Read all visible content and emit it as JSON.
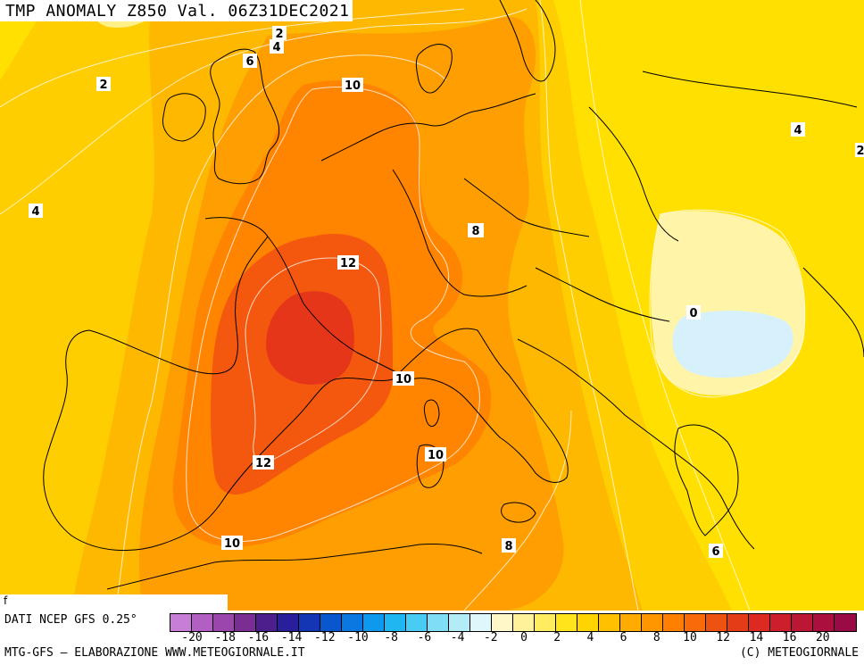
{
  "title": "TMP ANOMALY Z850 Val. 06Z31DEC2021",
  "footer": {
    "source": "DATI NCEP GFS 0.25°",
    "credit": "MTG-GFS — ELABORAZIONE WWW.METEOGIORNALE.IT",
    "copyright": "(C) METEOGIORNALE",
    "corner_mark": "f"
  },
  "scale": {
    "ticks": [
      "-20",
      "-18",
      "-16",
      "-14",
      "-12",
      "-10",
      "-8",
      "-6",
      "-4",
      "-2",
      "0",
      "2",
      "4",
      "6",
      "8",
      "10",
      "12",
      "14",
      "16",
      "20"
    ],
    "colors": [
      "#c77fd6",
      "#b25fc4",
      "#9a46ad",
      "#7a2e94",
      "#4b1f8c",
      "#2a1f9a",
      "#1436b4",
      "#0a56cc",
      "#0a78e0",
      "#0e99ee",
      "#1fb6f2",
      "#49cbf3",
      "#7fddf5",
      "#b3ecf7",
      "#dff7fb",
      "#fff7c8",
      "#fff29a",
      "#ffec5f",
      "#ffe41c",
      "#ffd400",
      "#ffc000",
      "#ffab00",
      "#ff9600",
      "#ff8000",
      "#f86a0a",
      "#ee5212",
      "#e53c18",
      "#dc2a22",
      "#cc1f2c",
      "#bb1735",
      "#aa0f3d",
      "#9a0a44"
    ]
  },
  "contour_labels": [
    {
      "text": "2"
    },
    {
      "text": "4"
    },
    {
      "text": "6"
    },
    {
      "text": "2"
    },
    {
      "text": "10"
    },
    {
      "text": "4"
    },
    {
      "text": "4"
    },
    {
      "text": "2"
    },
    {
      "text": "8"
    },
    {
      "text": "12"
    },
    {
      "text": "0"
    },
    {
      "text": "10"
    },
    {
      "text": "10"
    },
    {
      "text": "12"
    },
    {
      "text": "10"
    },
    {
      "text": "8"
    },
    {
      "text": "6"
    }
  ]
}
